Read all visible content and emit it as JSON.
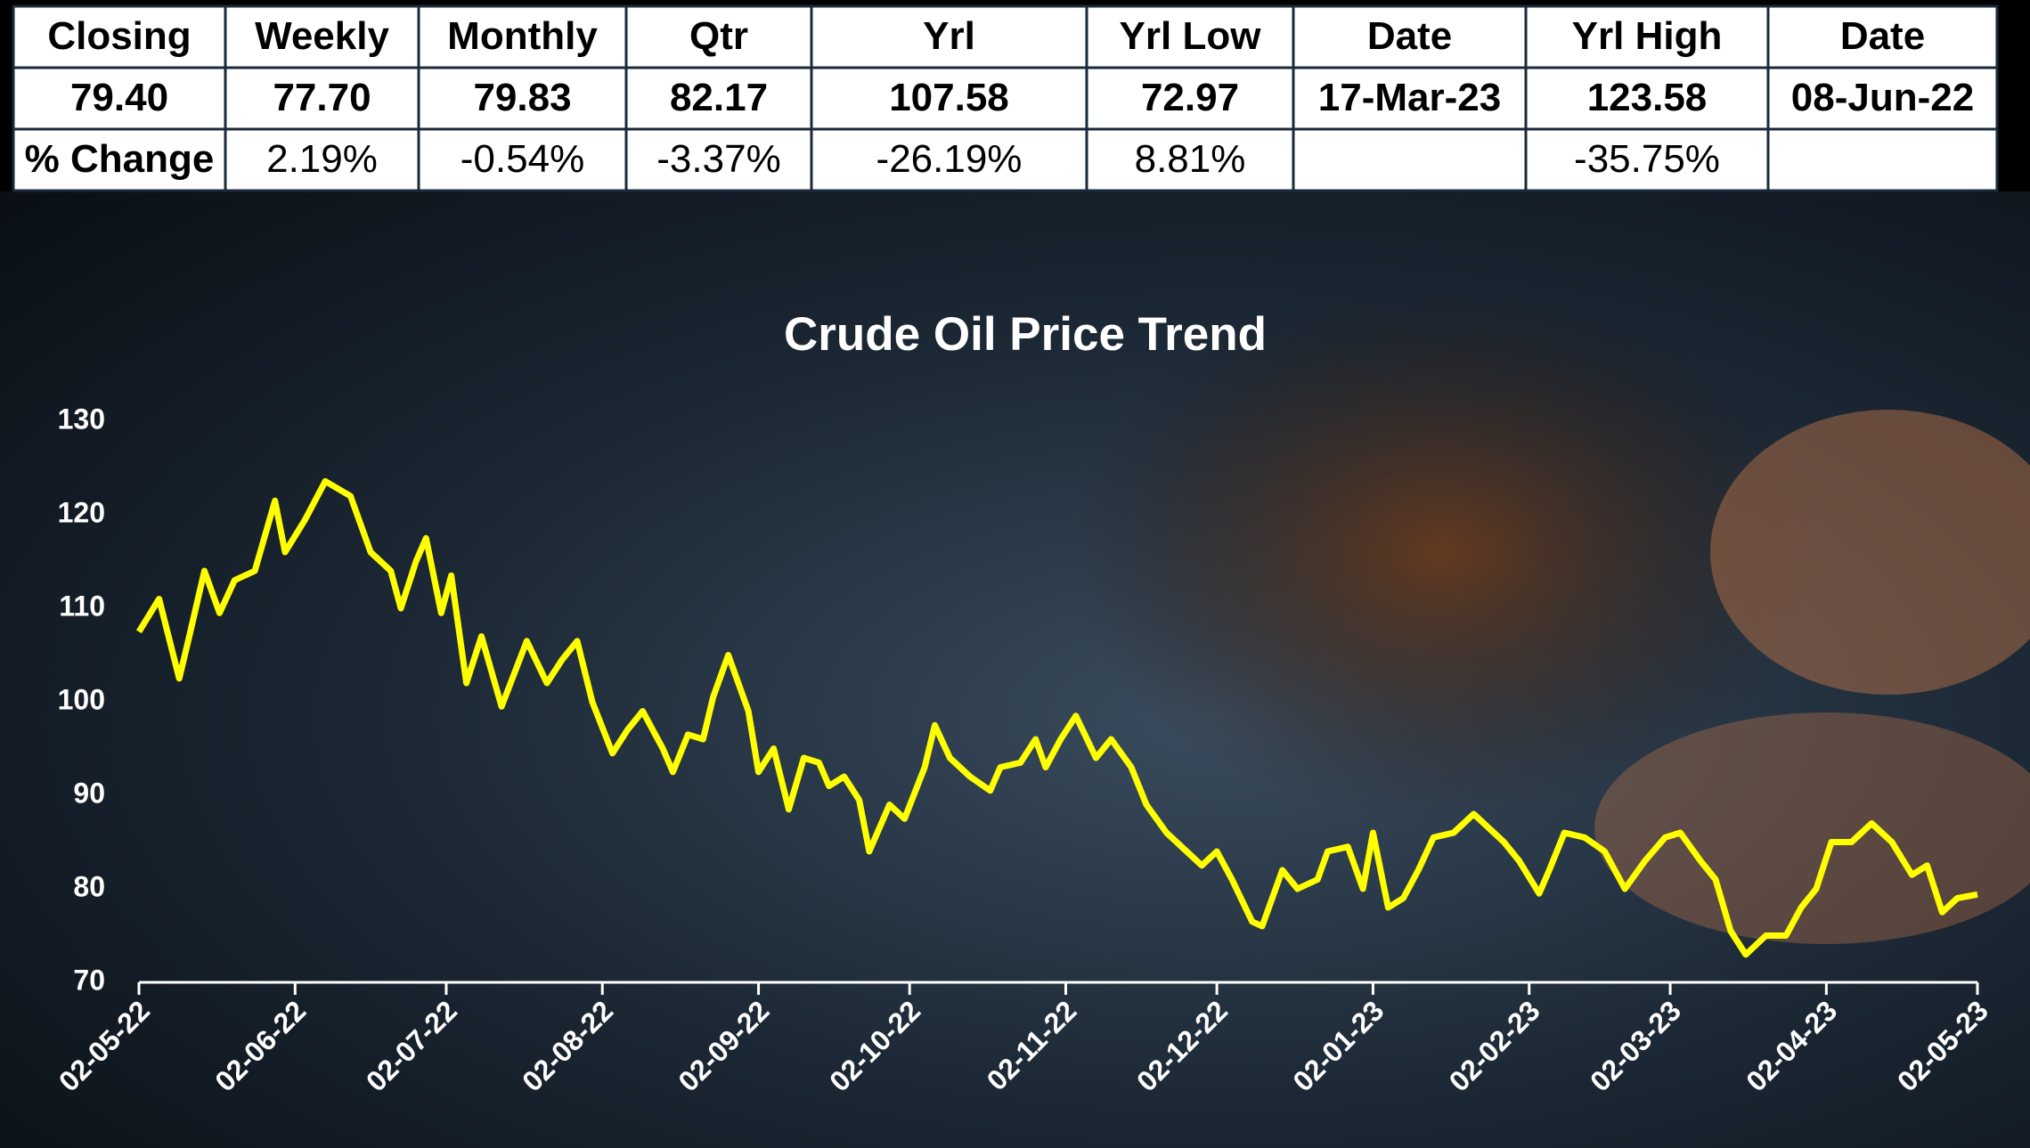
{
  "table": {
    "header": [
      "Closing",
      "Weekly",
      "Monthly",
      "Qtr",
      "Yrl",
      "Yrl Low",
      "Date",
      "Yrl High",
      "Date"
    ],
    "rows": [
      [
        "79.40",
        "77.70",
        "79.83",
        "82.17",
        "107.58",
        "72.97",
        "17-Mar-23",
        "123.58",
        "08-Jun-22"
      ],
      [
        "% Change",
        "2.19%",
        "-0.54%",
        "-3.37%",
        "-26.19%",
        "8.81%",
        null,
        "-35.75%",
        null
      ]
    ]
  },
  "chart_data": {
    "type": "line",
    "title": "Crude Oil Price Trend",
    "color": "#ffff00",
    "x": [
      "02-05-22",
      "06-05-22",
      "10-05-22",
      "12-05-22",
      "15-05-22",
      "18-05-22",
      "21-05-22",
      "25-05-22",
      "29-05-22",
      "31-05-22",
      "04-06-22",
      "08-06-22",
      "13-06-22",
      "17-06-22",
      "21-06-22",
      "23-06-22",
      "26-06-22",
      "28-06-22",
      "01-07-22",
      "03-07-22",
      "06-07-22",
      "09-07-22",
      "13-07-22",
      "18-07-22",
      "22-07-22",
      "25-07-22",
      "28-07-22",
      "31-07-22",
      "04-08-22",
      "07-08-22",
      "10-08-22",
      "14-08-22",
      "16-08-22",
      "19-08-22",
      "22-08-22",
      "24-08-22",
      "27-08-22",
      "31-08-22",
      "02-09-22",
      "05-09-22",
      "08-09-22",
      "11-09-22",
      "14-09-22",
      "16-09-22",
      "19-09-22",
      "22-09-22",
      "24-09-22",
      "28-09-22",
      "01-10-22",
      "05-10-22",
      "07-10-22",
      "10-10-22",
      "14-10-22",
      "18-10-22",
      "20-10-22",
      "24-10-22",
      "27-10-22",
      "29-10-22",
      "01-11-22",
      "04-11-22",
      "08-11-22",
      "11-11-22",
      "15-11-22",
      "18-11-22",
      "22-11-22",
      "26-11-22",
      "29-11-22",
      "02-12-22",
      "05-12-22",
      "09-12-22",
      "11-12-22",
      "15-12-22",
      "18-12-22",
      "22-12-22",
      "24-12-22",
      "28-12-22",
      "31-12-22",
      "02-01-23",
      "05-01-23",
      "08-01-23",
      "11-01-23",
      "14-01-23",
      "18-01-23",
      "22-01-23",
      "26-01-23",
      "28-01-23",
      "31-01-23",
      "04-02-23",
      "06-02-23",
      "09-02-23",
      "13-02-23",
      "17-02-23",
      "21-02-23",
      "25-02-23",
      "01-03-23",
      "04-03-23",
      "08-03-23",
      "11-03-23",
      "14-03-23",
      "17-03-23",
      "21-03-23",
      "25-03-23",
      "28-03-23",
      "31-03-23",
      "03-04-23",
      "07-04-23",
      "11-04-23",
      "15-04-23",
      "19-04-23",
      "22-04-23",
      "25-04-23",
      "28-04-23",
      "02-05-23"
    ],
    "values": [
      107.5,
      111,
      102.5,
      107,
      114,
      109.5,
      113,
      114,
      121.5,
      116,
      119.5,
      123.58,
      122,
      116,
      114,
      110,
      115,
      117.5,
      109.5,
      113.5,
      102,
      107,
      99.5,
      106.5,
      102,
      104.5,
      106.5,
      100,
      94.5,
      97,
      99,
      95,
      92.5,
      96.5,
      96,
      100.5,
      105,
      99,
      92.5,
      95,
      88.5,
      94,
      93.5,
      91,
      92,
      89.5,
      84,
      89,
      87.5,
      93,
      97.5,
      94,
      92,
      90.5,
      93,
      93.5,
      96,
      93,
      96,
      98.5,
      94,
      96,
      93,
      89,
      86,
      84,
      82.5,
      84,
      81,
      76.5,
      76,
      82,
      80,
      81,
      84,
      84.5,
      80,
      86,
      78,
      79,
      82,
      85.5,
      86,
      88,
      86,
      85,
      83,
      79.5,
      82,
      86,
      85.5,
      84,
      80,
      83,
      85.5,
      86,
      83,
      81,
      75.5,
      72.97,
      75,
      75,
      78,
      80,
      85,
      85,
      87,
      85,
      81.5,
      82.5,
      77.5,
      79,
      79.4
    ],
    "xlim": [
      "02-05-22",
      "02-05-23"
    ],
    "xticks": [
      "02-05-22",
      "02-06-22",
      "02-07-22",
      "02-08-22",
      "02-09-22",
      "02-10-22",
      "02-11-22",
      "02-12-22",
      "02-01-23",
      "02-02-23",
      "02-03-23",
      "02-04-23",
      "02-05-23"
    ],
    "ylim": [
      70,
      130
    ],
    "yticks": [
      70,
      80,
      90,
      100,
      110,
      120,
      130
    ],
    "grid": false
  }
}
